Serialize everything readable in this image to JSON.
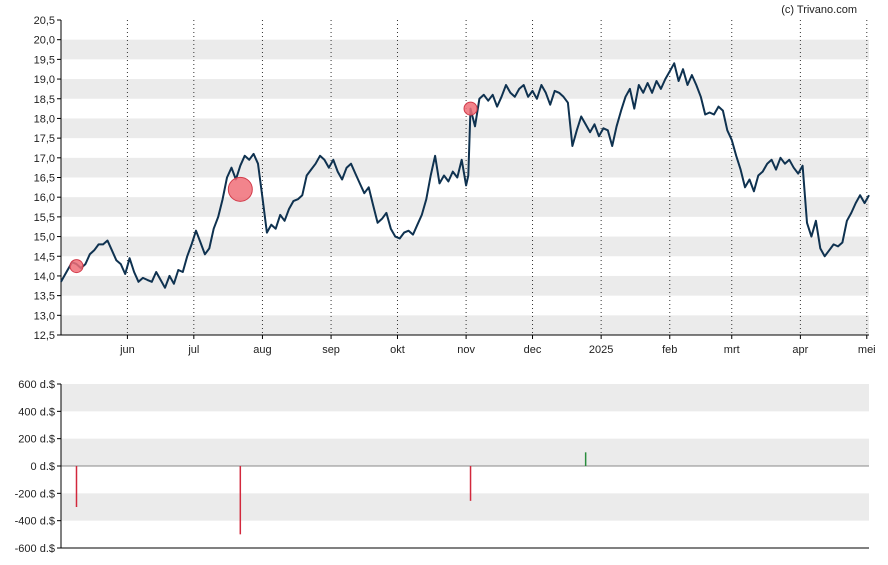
{
  "credit": "(c) Trivano.com",
  "colors": {
    "line": "#0f3250",
    "band": "#ebebeb",
    "event_marker": "#f06e78",
    "event_marker_stroke": "#d23c4b",
    "bar_negative": "#d2283c",
    "bar_positive": "#288c3c",
    "axis": "#000000"
  },
  "chart_data": [
    {
      "type": "line",
      "title": "",
      "ylim": [
        12.5,
        20.5
      ],
      "y_ticks": [
        "12,5",
        "13,0",
        "13,5",
        "14,0",
        "14,5",
        "15,0",
        "15,5",
        "16,0",
        "16,5",
        "17,0",
        "17,5",
        "18,0",
        "18,5",
        "19,0",
        "19,5",
        "20,0",
        "20,5"
      ],
      "y_tick_values": [
        12.5,
        13.0,
        13.5,
        14.0,
        14.5,
        15.0,
        15.5,
        16.0,
        16.5,
        17.0,
        17.5,
        18.0,
        18.5,
        19.0,
        19.5,
        20.0,
        20.5
      ],
      "x_range": [
        "2024-05-02",
        "2025-05-02"
      ],
      "x_ticks": [
        {
          "label": "jun",
          "date": "2024-06-01"
        },
        {
          "label": "jul",
          "date": "2024-07-01"
        },
        {
          "label": "aug",
          "date": "2024-08-01"
        },
        {
          "label": "sep",
          "date": "2024-09-01"
        },
        {
          "label": "okt",
          "date": "2024-10-01"
        },
        {
          "label": "nov",
          "date": "2024-11-01"
        },
        {
          "label": "dec",
          "date": "2024-12-01"
        },
        {
          "label": "2025",
          "date": "2025-01-01"
        },
        {
          "label": "feb",
          "date": "2025-02-01"
        },
        {
          "label": "mrt",
          "date": "2025-03-01"
        },
        {
          "label": "apr",
          "date": "2025-04-01"
        },
        {
          "label": "mei",
          "date": "2025-05-01"
        }
      ],
      "grid": "dotted vertical lines at month ticks, alternating horizontal bands",
      "series": [
        {
          "points": [
            [
              "2024-05-02",
              13.85
            ],
            [
              "2024-05-05",
              14.15
            ],
            [
              "2024-05-07",
              14.35
            ],
            [
              "2024-05-09",
              14.3
            ],
            [
              "2024-05-11",
              14.2
            ],
            [
              "2024-05-13",
              14.3
            ],
            [
              "2024-05-15",
              14.55
            ],
            [
              "2024-05-17",
              14.65
            ],
            [
              "2024-05-19",
              14.8
            ],
            [
              "2024-05-21",
              14.8
            ],
            [
              "2024-05-23",
              14.9
            ],
            [
              "2024-05-25",
              14.65
            ],
            [
              "2024-05-27",
              14.4
            ],
            [
              "2024-05-29",
              14.3
            ],
            [
              "2024-05-31",
              14.05
            ],
            [
              "2024-06-02",
              14.45
            ],
            [
              "2024-06-04",
              14.1
            ],
            [
              "2024-06-06",
              13.85
            ],
            [
              "2024-06-08",
              13.95
            ],
            [
              "2024-06-10",
              13.9
            ],
            [
              "2024-06-12",
              13.85
            ],
            [
              "2024-06-14",
              14.1
            ],
            [
              "2024-06-16",
              13.9
            ],
            [
              "2024-06-18",
              13.7
            ],
            [
              "2024-06-20",
              14.0
            ],
            [
              "2024-06-22",
              13.8
            ],
            [
              "2024-06-24",
              14.15
            ],
            [
              "2024-06-26",
              14.1
            ],
            [
              "2024-06-28",
              14.5
            ],
            [
              "2024-06-30",
              14.8
            ],
            [
              "2024-07-02",
              15.15
            ],
            [
              "2024-07-04",
              14.85
            ],
            [
              "2024-07-06",
              14.55
            ],
            [
              "2024-07-08",
              14.7
            ],
            [
              "2024-07-10",
              15.2
            ],
            [
              "2024-07-12",
              15.5
            ],
            [
              "2024-07-14",
              15.95
            ],
            [
              "2024-07-16",
              16.5
            ],
            [
              "2024-07-18",
              16.75
            ],
            [
              "2024-07-20",
              16.45
            ],
            [
              "2024-07-22",
              16.8
            ],
            [
              "2024-07-24",
              17.05
            ],
            [
              "2024-07-26",
              16.95
            ],
            [
              "2024-07-28",
              17.1
            ],
            [
              "2024-07-30",
              16.85
            ],
            [
              "2024-08-01",
              16.0
            ],
            [
              "2024-08-03",
              15.1
            ],
            [
              "2024-08-05",
              15.3
            ],
            [
              "2024-08-07",
              15.2
            ],
            [
              "2024-08-09",
              15.55
            ],
            [
              "2024-08-11",
              15.4
            ],
            [
              "2024-08-13",
              15.7
            ],
            [
              "2024-08-15",
              15.9
            ],
            [
              "2024-08-17",
              15.95
            ],
            [
              "2024-08-19",
              16.05
            ],
            [
              "2024-08-21",
              16.55
            ],
            [
              "2024-08-23",
              16.7
            ],
            [
              "2024-08-25",
              16.85
            ],
            [
              "2024-08-27",
              17.05
            ],
            [
              "2024-08-29",
              16.95
            ],
            [
              "2024-08-31",
              16.75
            ],
            [
              "2024-09-02",
              16.95
            ],
            [
              "2024-09-04",
              16.65
            ],
            [
              "2024-09-06",
              16.45
            ],
            [
              "2024-09-08",
              16.75
            ],
            [
              "2024-09-10",
              16.85
            ],
            [
              "2024-09-12",
              16.6
            ],
            [
              "2024-09-14",
              16.35
            ],
            [
              "2024-09-16",
              16.1
            ],
            [
              "2024-09-18",
              16.25
            ],
            [
              "2024-09-20",
              15.8
            ],
            [
              "2024-09-22",
              15.35
            ],
            [
              "2024-09-24",
              15.45
            ],
            [
              "2024-09-26",
              15.6
            ],
            [
              "2024-09-28",
              15.2
            ],
            [
              "2024-09-30",
              15.0
            ],
            [
              "2024-10-02",
              14.95
            ],
            [
              "2024-10-04",
              15.1
            ],
            [
              "2024-10-06",
              15.15
            ],
            [
              "2024-10-08",
              15.05
            ],
            [
              "2024-10-10",
              15.3
            ],
            [
              "2024-10-12",
              15.55
            ],
            [
              "2024-10-14",
              15.95
            ],
            [
              "2024-10-16",
              16.55
            ],
            [
              "2024-10-18",
              17.05
            ],
            [
              "2024-10-20",
              16.35
            ],
            [
              "2024-10-22",
              16.55
            ],
            [
              "2024-10-24",
              16.4
            ],
            [
              "2024-10-26",
              16.65
            ],
            [
              "2024-10-28",
              16.5
            ],
            [
              "2024-10-30",
              16.95
            ],
            [
              "2024-11-01",
              16.3
            ],
            [
              "2024-11-02",
              16.55
            ],
            [
              "2024-11-03",
              18.25
            ],
            [
              "2024-11-05",
              17.8
            ],
            [
              "2024-11-07",
              18.5
            ],
            [
              "2024-11-09",
              18.6
            ],
            [
              "2024-11-11",
              18.45
            ],
            [
              "2024-11-13",
              18.6
            ],
            [
              "2024-11-15",
              18.3
            ],
            [
              "2024-11-17",
              18.55
            ],
            [
              "2024-11-19",
              18.85
            ],
            [
              "2024-11-21",
              18.65
            ],
            [
              "2024-11-23",
              18.55
            ],
            [
              "2024-11-25",
              18.75
            ],
            [
              "2024-11-27",
              18.85
            ],
            [
              "2024-11-29",
              18.55
            ],
            [
              "2024-12-01",
              18.7
            ],
            [
              "2024-12-03",
              18.5
            ],
            [
              "2024-12-05",
              18.85
            ],
            [
              "2024-12-07",
              18.65
            ],
            [
              "2024-12-09",
              18.35
            ],
            [
              "2024-12-11",
              18.7
            ],
            [
              "2024-12-13",
              18.65
            ],
            [
              "2024-12-15",
              18.55
            ],
            [
              "2024-12-17",
              18.4
            ],
            [
              "2024-12-19",
              17.3
            ],
            [
              "2024-12-21",
              17.7
            ],
            [
              "2024-12-23",
              18.05
            ],
            [
              "2024-12-25",
              17.85
            ],
            [
              "2024-12-27",
              17.65
            ],
            [
              "2024-12-29",
              17.85
            ],
            [
              "2024-12-31",
              17.55
            ],
            [
              "2025-01-02",
              17.75
            ],
            [
              "2025-01-04",
              17.7
            ],
            [
              "2025-01-06",
              17.3
            ],
            [
              "2025-01-08",
              17.8
            ],
            [
              "2025-01-10",
              18.2
            ],
            [
              "2025-01-12",
              18.55
            ],
            [
              "2025-01-14",
              18.75
            ],
            [
              "2025-01-16",
              18.25
            ],
            [
              "2025-01-18",
              18.85
            ],
            [
              "2025-01-20",
              18.65
            ],
            [
              "2025-01-22",
              18.9
            ],
            [
              "2025-01-24",
              18.65
            ],
            [
              "2025-01-26",
              18.95
            ],
            [
              "2025-01-28",
              18.75
            ],
            [
              "2025-01-30",
              19.0
            ],
            [
              "2025-02-01",
              19.2
            ],
            [
              "2025-02-03",
              19.4
            ],
            [
              "2025-02-05",
              18.95
            ],
            [
              "2025-02-07",
              19.25
            ],
            [
              "2025-02-09",
              18.85
            ],
            [
              "2025-02-11",
              19.1
            ],
            [
              "2025-02-13",
              18.85
            ],
            [
              "2025-02-15",
              18.55
            ],
            [
              "2025-02-17",
              18.1
            ],
            [
              "2025-02-19",
              18.15
            ],
            [
              "2025-02-21",
              18.1
            ],
            [
              "2025-02-23",
              18.3
            ],
            [
              "2025-02-25",
              18.2
            ],
            [
              "2025-02-27",
              17.7
            ],
            [
              "2025-03-01",
              17.45
            ],
            [
              "2025-03-03",
              17.05
            ],
            [
              "2025-03-05",
              16.7
            ],
            [
              "2025-03-07",
              16.25
            ],
            [
              "2025-03-09",
              16.45
            ],
            [
              "2025-03-11",
              16.15
            ],
            [
              "2025-03-13",
              16.55
            ],
            [
              "2025-03-15",
              16.65
            ],
            [
              "2025-03-17",
              16.85
            ],
            [
              "2025-03-19",
              16.95
            ],
            [
              "2025-03-21",
              16.7
            ],
            [
              "2025-03-23",
              17.0
            ],
            [
              "2025-03-25",
              16.85
            ],
            [
              "2025-03-27",
              16.95
            ],
            [
              "2025-03-29",
              16.75
            ],
            [
              "2025-03-31",
              16.6
            ],
            [
              "2025-04-02",
              16.8
            ],
            [
              "2025-04-04",
              15.35
            ],
            [
              "2025-04-06",
              15.0
            ],
            [
              "2025-04-08",
              15.4
            ],
            [
              "2025-04-10",
              14.7
            ],
            [
              "2025-04-12",
              14.5
            ],
            [
              "2025-04-14",
              14.65
            ],
            [
              "2025-04-16",
              14.8
            ],
            [
              "2025-04-18",
              14.75
            ],
            [
              "2025-04-20",
              14.85
            ],
            [
              "2025-04-22",
              15.4
            ],
            [
              "2025-04-24",
              15.6
            ],
            [
              "2025-04-26",
              15.85
            ],
            [
              "2025-04-28",
              16.05
            ],
            [
              "2025-04-30",
              15.85
            ],
            [
              "2025-05-02",
              16.05
            ]
          ]
        }
      ],
      "event_markers": [
        {
          "date": "2024-05-09",
          "y": 14.25,
          "size": "small"
        },
        {
          "date": "2024-07-22",
          "y": 16.2,
          "size": "large"
        },
        {
          "date": "2024-11-03",
          "y": 18.25,
          "size": "small"
        }
      ]
    },
    {
      "type": "bar",
      "title": "",
      "unit": "d.$",
      "ylim": [
        -600,
        600
      ],
      "y_ticks": [
        "600 d.$",
        "400 d.$",
        "200 d.$",
        "0 d.$",
        "-200 d.$",
        "-400 d.$",
        "-600 d.$"
      ],
      "y_tick_values": [
        600,
        400,
        200,
        0,
        -200,
        -400,
        -600
      ],
      "bars": [
        {
          "date": "2024-05-09",
          "value": -300
        },
        {
          "date": "2024-07-22",
          "value": -500
        },
        {
          "date": "2024-11-03",
          "value": -255
        },
        {
          "date": "2024-12-25",
          "value": 100
        }
      ]
    }
  ]
}
